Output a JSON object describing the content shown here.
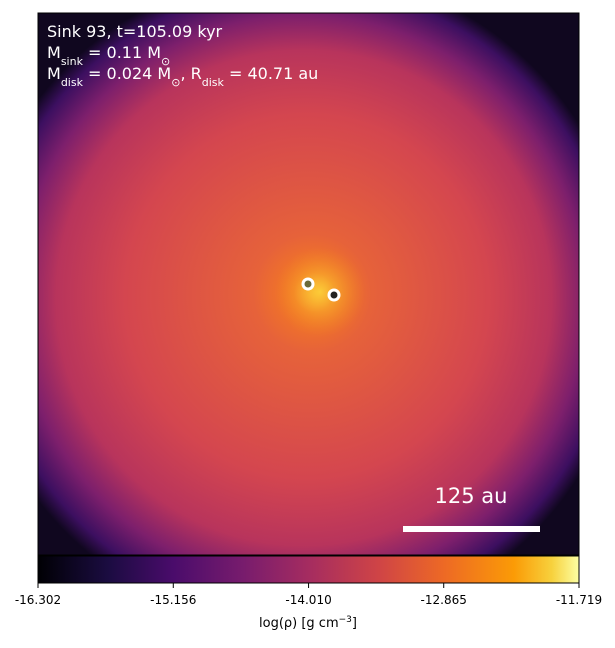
{
  "chart_data": {
    "type": "image",
    "annotations": [
      [
        {
          "text": "Sink 93, t=105.09 kyr"
        }
      ],
      [
        {
          "text": "M"
        },
        {
          "text": "sink",
          "sub": true
        },
        {
          "text": " = 0.11 M"
        },
        {
          "text": "⊙",
          "sub": true
        }
      ],
      [
        {
          "text": "M"
        },
        {
          "text": "disk",
          "sub": true
        },
        {
          "text": " = 0.024 M"
        },
        {
          "text": "⊙",
          "sub": true
        },
        {
          "text": ", R"
        },
        {
          "text": "disk",
          "sub": true
        },
        {
          "text": " = 40.71 au"
        }
      ]
    ],
    "scale_bar": "125 au",
    "colormap": "inferno",
    "clim": [
      -16.302,
      -11.719
    ],
    "cticks": [
      -16.302,
      -15.156,
      {
        "value": -14.01,
        "label": "-14.010"
      },
      -12.865,
      -11.719
    ],
    "colorbar_label": [
      {
        "text": "log(ρ) [g cm"
      },
      {
        "text": "−3",
        "sup": true
      },
      {
        "text": "]"
      }
    ]
  }
}
